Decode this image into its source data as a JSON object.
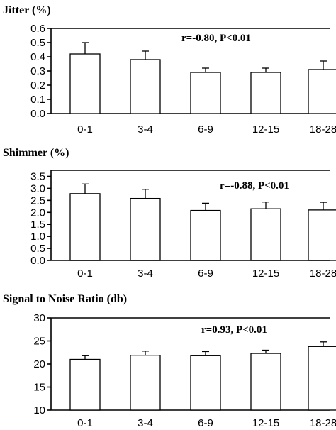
{
  "chart_data": [
    {
      "type": "bar",
      "title": "Jitter (%)",
      "annotation": "r=-0.80, P<0.01",
      "categories": [
        "0-1",
        "3-4",
        "6-9",
        "12-15",
        "18-28"
      ],
      "values": [
        0.42,
        0.38,
        0.29,
        0.29,
        0.31
      ],
      "errors": [
        0.08,
        0.06,
        0.03,
        0.03,
        0.06
      ],
      "ylim": [
        0.0,
        0.6
      ],
      "yticks": [
        "0.0",
        "0.1",
        "0.2",
        "0.3",
        "0.4",
        "0.5",
        "0.6"
      ],
      "ytick_values": [
        0.0,
        0.1,
        0.2,
        0.3,
        0.4,
        0.5,
        0.6
      ],
      "grid": false
    },
    {
      "type": "bar",
      "title": "Shimmer (%)",
      "annotation": "r=-0.88, P<0.01",
      "categories": [
        "0-1",
        "3-4",
        "6-9",
        "12-15",
        "18-28"
      ],
      "values": [
        2.78,
        2.58,
        2.08,
        2.15,
        2.1
      ],
      "errors": [
        0.4,
        0.38,
        0.3,
        0.28,
        0.32
      ],
      "ylim": [
        0.0,
        3.75
      ],
      "yticks": [
        "0.0",
        "0.5",
        "1.0",
        "1.5",
        "2.0",
        "2.5",
        "3.0",
        "3.5"
      ],
      "ytick_values": [
        0.0,
        0.5,
        1.0,
        1.5,
        2.0,
        2.5,
        3.0,
        3.5
      ],
      "grid": false
    },
    {
      "type": "bar",
      "title": "Signal to Noise Ratio (db)",
      "annotation": "r=0.93, P<0.01",
      "categories": [
        "0-1",
        "3-4",
        "6-9",
        "12-15",
        "18-28"
      ],
      "values": [
        21.0,
        21.9,
        21.8,
        22.3,
        23.8
      ],
      "errors": [
        0.8,
        0.9,
        0.9,
        0.7,
        1.0
      ],
      "ylim": [
        10,
        30
      ],
      "yticks": [
        "10",
        "15",
        "20",
        "25",
        "30"
      ],
      "ytick_values": [
        10,
        15,
        20,
        25,
        30
      ],
      "grid": false
    }
  ]
}
